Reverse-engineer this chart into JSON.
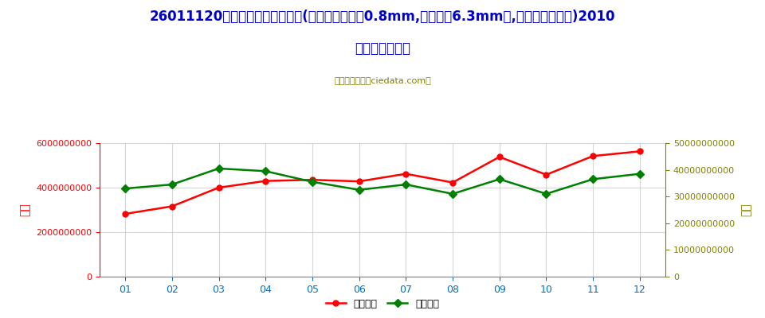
{
  "title_line1": "26011120未烧结铁矿砂及其精矿(平均粒度不小于0.8mm,但不大于6.3mm的,焙烧黄铁矿除外)2010",
  "title_line2": "年进口月度走势",
  "subtitle": "进出口服务网（ciedata.com）",
  "months": [
    "01",
    "02",
    "03",
    "04",
    "05",
    "06",
    "07",
    "08",
    "09",
    "10",
    "11",
    "12"
  ],
  "import_usd": [
    2820000000,
    3160000000,
    4000000000,
    4300000000,
    4350000000,
    4280000000,
    4620000000,
    4230000000,
    5380000000,
    4580000000,
    5420000000,
    5630000000
  ],
  "import_qty": [
    33000000000,
    34500000000,
    40500000000,
    39500000000,
    35500000000,
    32500000000,
    34500000000,
    31000000000,
    36500000000,
    31000000000,
    36500000000,
    38500000000
  ],
  "left_ylim": [
    0,
    6000000000
  ],
  "right_ylim": [
    0,
    50000000000
  ],
  "left_yticks": [
    0,
    2000000000,
    4000000000,
    6000000000
  ],
  "right_yticks": [
    0,
    10000000000,
    20000000000,
    30000000000,
    40000000000,
    50000000000
  ],
  "left_ylabel": "金额",
  "right_ylabel": "数量",
  "line1_color": "#FF0000",
  "line2_color": "#008000",
  "line1_label": "进口美元",
  "line2_label": "进口数量",
  "title_color": "#0000CD",
  "axis_color": "#FF0000",
  "right_axis_color": "#808000",
  "xtick_color": "#0070C0",
  "ytick_left_color": "#FF0000",
  "ytick_right_color": "#808000",
  "background_color": "#FFFFFF",
  "grid_color": "#CCCCCC",
  "subtitle_color": "#808000"
}
